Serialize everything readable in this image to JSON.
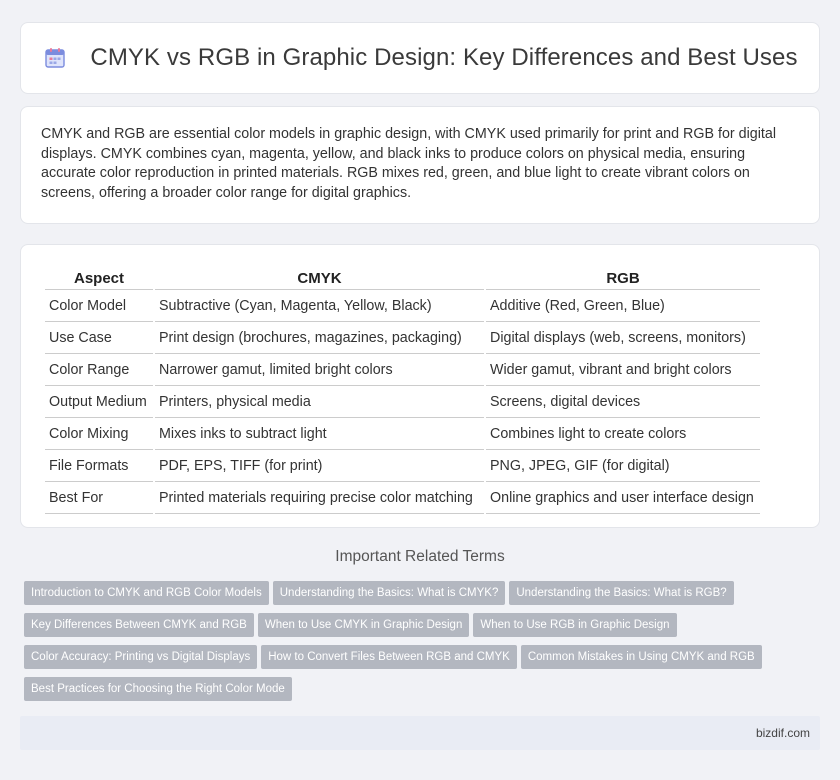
{
  "header": {
    "title": "CMYK vs RGB in Graphic Design: Key Differences and Best Uses",
    "icon": "calendar-icon"
  },
  "intro": {
    "text": "CMYK and RGB are essential color models in graphic design, with CMYK used primarily for print and RGB for digital displays. CMYK combines cyan, magenta, yellow, and black inks to produce colors on physical media, ensuring accurate color reproduction in printed materials. RGB mixes red, green, and blue light to create vibrant colors on screens, offering a broader color range for digital graphics."
  },
  "table": {
    "headers": [
      "Aspect",
      "CMYK",
      "RGB"
    ],
    "rows": [
      [
        "Color Model",
        "Subtractive (Cyan, Magenta, Yellow, Black)",
        "Additive (Red, Green, Blue)"
      ],
      [
        "Use Case",
        "Print design (brochures, magazines, packaging)",
        "Digital displays (web, screens, monitors)"
      ],
      [
        "Color Range",
        "Narrower gamut, limited bright colors",
        "Wider gamut, vibrant and bright colors"
      ],
      [
        "Output Medium",
        "Printers, physical media",
        "Screens, digital devices"
      ],
      [
        "Color Mixing",
        "Mixes inks to subtract light",
        "Combines light to create colors"
      ],
      [
        "File Formats",
        "PDF, EPS, TIFF (for print)",
        "PNG, JPEG, GIF (for digital)"
      ],
      [
        "Best For",
        "Printed materials requiring precise color matching",
        "Online graphics and user interface design"
      ]
    ]
  },
  "related": {
    "title": "Important Related Terms",
    "tags": [
      "Introduction to CMYK and RGB Color Models",
      "Understanding the Basics: What is CMYK?",
      "Understanding the Basics: What is RGB?",
      "Key Differences Between CMYK and RGB",
      "When to Use CMYK in Graphic Design",
      "When to Use RGB in Graphic Design",
      "Color Accuracy: Printing vs Digital Displays",
      "How to Convert Files Between RGB and CMYK",
      "Common Mistakes in Using CMYK and RGB",
      "Best Practices for Choosing the Right Color Mode"
    ]
  },
  "footer": {
    "site": "bizdif.com"
  },
  "colors": {
    "background": "#f1f2f6",
    "tag_background": "#b3b7c0",
    "footer_background": "#e9ecf4",
    "icon_primary": "#7b8cde",
    "icon_accent": "#e97a9a"
  }
}
